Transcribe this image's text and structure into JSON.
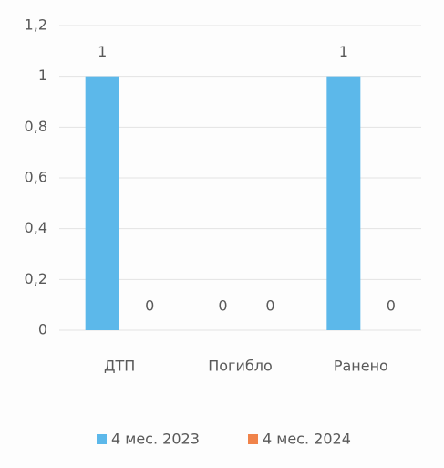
{
  "chart_data": {
    "type": "bar",
    "categories": [
      "ДТП",
      "Погибло",
      "Ранено"
    ],
    "series": [
      {
        "name": "4 мес. 2023",
        "color": "#5cb8ea",
        "values": [
          1,
          0,
          1
        ]
      },
      {
        "name": "4 мес. 2024",
        "color": "#f0834a",
        "values": [
          0,
          0,
          0
        ]
      }
    ],
    "ylim": [
      0,
      1.2
    ],
    "yticks": [
      0,
      {
        "value": 0.2,
        "label": "0,2"
      },
      {
        "value": 0.4,
        "label": "0,4"
      },
      {
        "value": 0.6,
        "label": "0,6"
      },
      {
        "value": 0.8,
        "label": "0,8"
      },
      1,
      {
        "value": 1.2,
        "label": "1,2"
      }
    ],
    "grid": true,
    "legend": "bottom"
  }
}
